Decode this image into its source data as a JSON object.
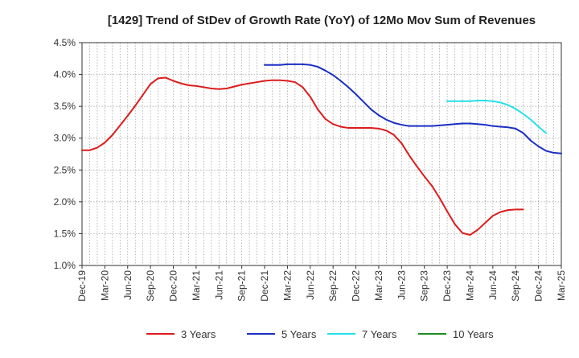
{
  "chart_data": {
    "type": "line",
    "title": "[1429]  Trend of StDev of Growth Rate (YoY) of 12Mo Mov Sum of Revenues",
    "xlabel": "",
    "ylabel": "",
    "ylim": [
      1.0,
      4.5
    ],
    "yticks": [
      1.0,
      1.5,
      2.0,
      2.5,
      3.0,
      3.5,
      4.0,
      4.5
    ],
    "ytick_labels": [
      "1.0%",
      "1.5%",
      "2.0%",
      "2.5%",
      "3.0%",
      "3.5%",
      "4.0%",
      "4.5%"
    ],
    "xtick_labels": [
      "Dec-19",
      "Mar-20",
      "Jun-20",
      "Sep-20",
      "Dec-20",
      "Mar-21",
      "Jun-21",
      "Sep-21",
      "Dec-21",
      "Mar-22",
      "Jun-22",
      "Sep-22",
      "Dec-22",
      "Mar-23",
      "Jun-23",
      "Sep-23",
      "Dec-23",
      "Mar-24",
      "Jun-24",
      "Sep-24",
      "Dec-24",
      "Mar-25"
    ],
    "x_count": 64,
    "grid": true,
    "legend_position": "bottom",
    "series": [
      {
        "name": "3 Years",
        "color": "#dd1c1c",
        "start_index": 0,
        "values": [
          2.81,
          2.81,
          2.85,
          2.93,
          3.05,
          3.2,
          3.35,
          3.51,
          3.68,
          3.85,
          3.94,
          3.95,
          3.9,
          3.86,
          3.83,
          3.82,
          3.8,
          3.78,
          3.77,
          3.78,
          3.81,
          3.84,
          3.86,
          3.88,
          3.9,
          3.91,
          3.91,
          3.9,
          3.88,
          3.8,
          3.65,
          3.45,
          3.3,
          3.22,
          3.18,
          3.16,
          3.16,
          3.16,
          3.16,
          3.15,
          3.12,
          3.05,
          2.92,
          2.73,
          2.56,
          2.4,
          2.25,
          2.06,
          1.85,
          1.65,
          1.51,
          1.48,
          1.56,
          1.67,
          1.78,
          1.84,
          1.87,
          1.88,
          1.88
        ]
      },
      {
        "name": "5 Years",
        "color": "#1a2fc4",
        "start_index": 24,
        "values": [
          4.15,
          4.15,
          4.15,
          4.16,
          4.16,
          4.16,
          4.15,
          4.12,
          4.06,
          3.99,
          3.9,
          3.8,
          3.69,
          3.57,
          3.45,
          3.36,
          3.29,
          3.24,
          3.21,
          3.19,
          3.19,
          3.19,
          3.19,
          3.2,
          3.21,
          3.22,
          3.23,
          3.23,
          3.22,
          3.21,
          3.19,
          3.18,
          3.17,
          3.15,
          3.08,
          2.96,
          2.87,
          2.8,
          2.77,
          2.76
        ]
      },
      {
        "name": "7 Years",
        "color": "#26e0e8",
        "start_index": 48,
        "values": [
          3.58,
          3.58,
          3.58,
          3.58,
          3.59,
          3.59,
          3.58,
          3.56,
          3.52,
          3.46,
          3.38,
          3.29,
          3.18,
          3.08
        ]
      },
      {
        "name": "10 Years",
        "color": "#1e8c1e",
        "start_index": 0,
        "values": []
      }
    ]
  }
}
